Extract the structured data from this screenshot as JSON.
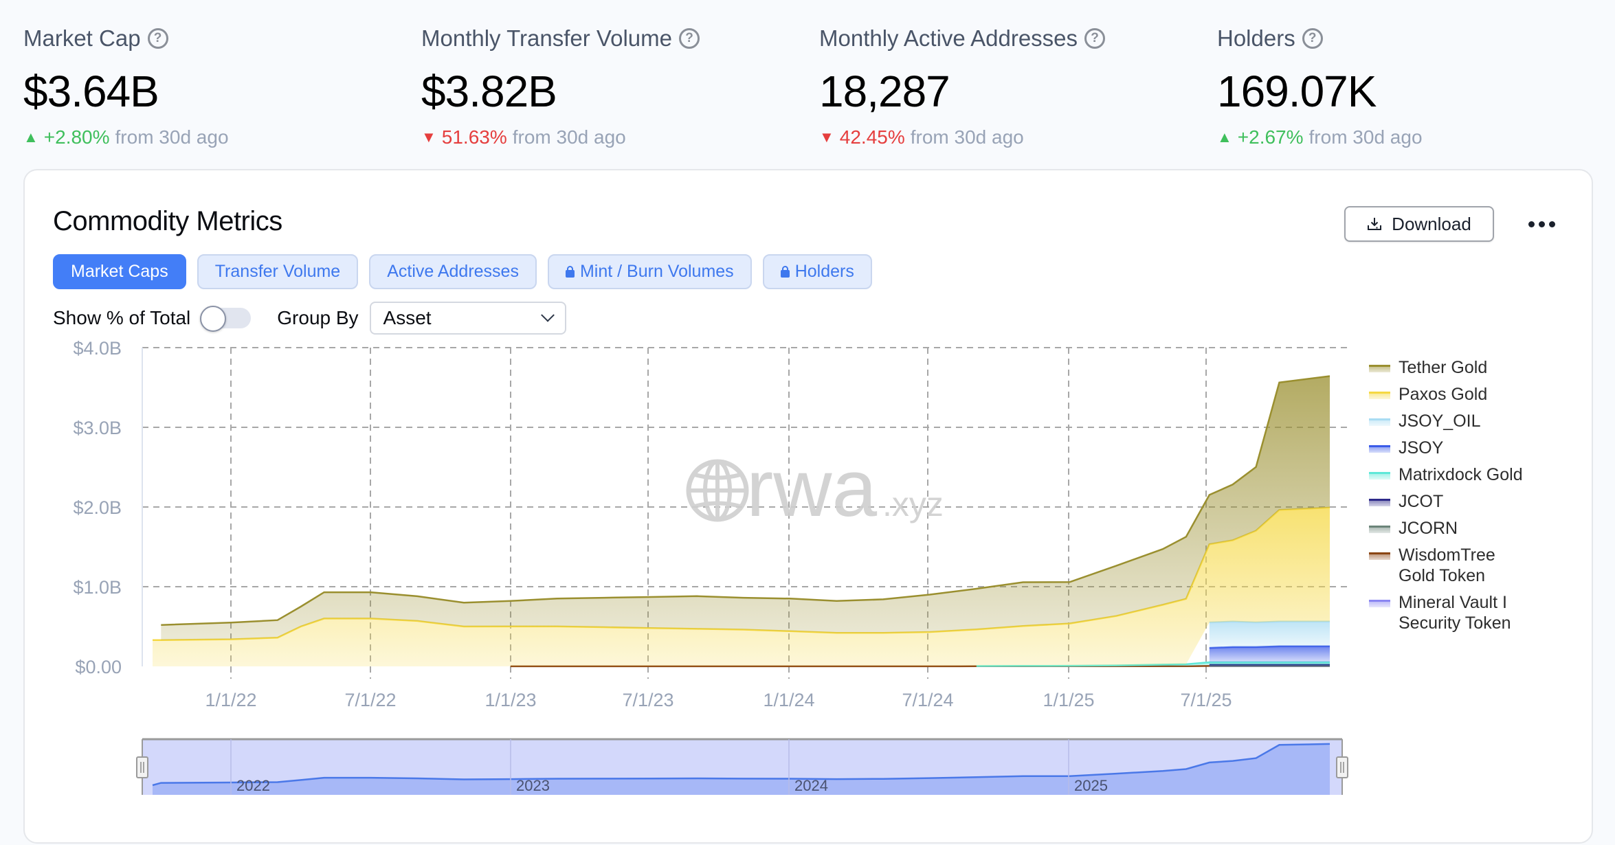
{
  "kpis": [
    {
      "label": "Market Cap",
      "value": "$3.64B",
      "direction": "up",
      "change": "+2.80%",
      "from": "from 30d ago"
    },
    {
      "label": "Monthly Transfer Volume",
      "value": "$3.82B",
      "direction": "down",
      "change": "51.63%",
      "from": "from 30d ago"
    },
    {
      "label": "Monthly Active Addresses",
      "value": "18,287",
      "direction": "down",
      "change": "42.45%",
      "from": "from 30d ago"
    },
    {
      "label": "Holders",
      "value": "169.07K",
      "direction": "up",
      "change": "+2.67%",
      "from": "from 30d ago"
    }
  ],
  "icons": {
    "help": "?",
    "up_arrow": "▲",
    "down_arrow": "▼"
  },
  "card": {
    "title": "Commodity Metrics",
    "download_label": "Download",
    "tabs": [
      {
        "label": "Market Caps",
        "active": true,
        "locked": false
      },
      {
        "label": "Transfer Volume",
        "active": false,
        "locked": false
      },
      {
        "label": "Active Addresses",
        "active": false,
        "locked": false
      },
      {
        "label": "Mint / Burn Volumes",
        "active": false,
        "locked": true
      },
      {
        "label": "Holders",
        "active": false,
        "locked": true
      }
    ],
    "show_pct_label": "Show % of Total",
    "show_pct_on": false,
    "group_by_label": "Group By",
    "group_by_value": "Asset"
  },
  "watermark": {
    "main": "rwa",
    "suffix": ".xyz"
  },
  "colors": {
    "accent": "#437ef7",
    "up": "#3fbf5c",
    "down": "#e53e3e",
    "tether_gold": "#9a8f2f",
    "paxos_gold": "#f5d842",
    "jsoy_oil": "#a9dcf3",
    "jsoy": "#3b5be8",
    "matrixdock_gold": "#5fe8d8",
    "jcot": "#2e2a8a",
    "jcorn": "#6b8479",
    "wisdomtree": "#8b4513",
    "mineral_vault": "#8a86f2"
  },
  "chart_data": {
    "type": "area",
    "stacked": true,
    "title": "",
    "xlabel": "",
    "ylabel": "",
    "ylim": [
      0,
      4.0
    ],
    "y_unit": "B USD",
    "y_ticks": [
      "$0.00",
      "$1.0B",
      "$2.0B",
      "$3.0B",
      "$4.0B"
    ],
    "x_ticks": [
      "1/1/22",
      "7/1/22",
      "1/1/23",
      "7/1/23",
      "1/1/24",
      "7/1/24",
      "1/1/25",
      "7/1/25"
    ],
    "grid": true,
    "legend_position": "right",
    "x": [
      "2021-08",
      "2021-10",
      "2022-01",
      "2022-03",
      "2022-04",
      "2022-05",
      "2022-07",
      "2022-09",
      "2022-11",
      "2023-01",
      "2023-03",
      "2023-05",
      "2023-07",
      "2023-09",
      "2023-11",
      "2024-01",
      "2024-03",
      "2024-05",
      "2024-07",
      "2024-09",
      "2024-11",
      "2025-01",
      "2025-03",
      "2025-05",
      "2025-06",
      "2025-07",
      "2025-08",
      "2025-09",
      "2025-10",
      "2025-11"
    ],
    "series": [
      {
        "name": "Mineral Vault I Security Token",
        "values": [
          0,
          0,
          0,
          0,
          0,
          0,
          0,
          0,
          0,
          0,
          0,
          0,
          0,
          0,
          0,
          0,
          0,
          0,
          0,
          0,
          0,
          0,
          0,
          0,
          0,
          0.003,
          0.003,
          0.003,
          0.003,
          0.003
        ]
      },
      {
        "name": "WisdomTree Gold Token",
        "values": [
          0,
          0,
          0,
          0,
          0,
          0,
          0,
          0,
          0,
          0.001,
          0.001,
          0.001,
          0.001,
          0.001,
          0.001,
          0.001,
          0.001,
          0.001,
          0.001,
          0.002,
          0.002,
          0.002,
          0.002,
          0.002,
          0.002,
          0.002,
          0.002,
          0.002,
          0.002,
          0.002
        ]
      },
      {
        "name": "JCORN",
        "values": [
          0,
          0,
          0,
          0,
          0,
          0,
          0,
          0,
          0,
          0,
          0,
          0,
          0,
          0,
          0,
          0,
          0,
          0,
          0,
          0,
          0,
          0,
          0,
          0,
          0,
          0.002,
          0.002,
          0.002,
          0.002,
          0.002
        ]
      },
      {
        "name": "JCOT",
        "values": [
          0,
          0,
          0,
          0,
          0,
          0,
          0,
          0,
          0,
          0,
          0,
          0,
          0,
          0,
          0,
          0,
          0,
          0,
          0,
          0,
          0,
          0,
          0,
          0,
          0,
          0.015,
          0.015,
          0.015,
          0.015,
          0.015
        ]
      },
      {
        "name": "Matrixdock Gold",
        "values": [
          0,
          0,
          0,
          0,
          0,
          0,
          0,
          0,
          0,
          0,
          0,
          0,
          0,
          0,
          0,
          0,
          0,
          0,
          0,
          0.002,
          0.004,
          0.006,
          0.01,
          0.02,
          0.025,
          0.03,
          0.03,
          0.03,
          0.03,
          0.03
        ]
      },
      {
        "name": "JSOY",
        "values": [
          0,
          0,
          0,
          0,
          0,
          0,
          0,
          0,
          0,
          0,
          0,
          0,
          0,
          0,
          0,
          0,
          0,
          0,
          0,
          0,
          0,
          0,
          0,
          0,
          0,
          0.18,
          0.19,
          0.19,
          0.2,
          0.2
        ]
      },
      {
        "name": "JSOY_OIL",
        "values": [
          0,
          0,
          0,
          0,
          0,
          0,
          0,
          0,
          0,
          0,
          0,
          0,
          0,
          0,
          0,
          0,
          0,
          0,
          0,
          0,
          0,
          0,
          0,
          0,
          0,
          0.32,
          0.32,
          0.31,
          0.31,
          0.31
        ]
      },
      {
        "name": "Paxos Gold",
        "values": [
          0.33,
          0.33,
          0.34,
          0.36,
          0.5,
          0.6,
          0.6,
          0.57,
          0.5,
          0.5,
          0.5,
          0.49,
          0.48,
          0.47,
          0.46,
          0.44,
          0.42,
          0.42,
          0.43,
          0.46,
          0.5,
          0.53,
          0.62,
          0.75,
          0.82,
          0.98,
          1.02,
          1.15,
          1.4,
          1.43
        ]
      },
      {
        "name": "Tether Gold",
        "values": [
          0,
          0.19,
          0.21,
          0.22,
          0.25,
          0.33,
          0.33,
          0.31,
          0.3,
          0.32,
          0.35,
          0.37,
          0.39,
          0.41,
          0.4,
          0.41,
          0.4,
          0.42,
          0.47,
          0.51,
          0.55,
          0.52,
          0.63,
          0.7,
          0.78,
          0.62,
          0.7,
          0.8,
          1.6,
          1.65
        ]
      }
    ],
    "navigator": {
      "labels": [
        "2022",
        "2023",
        "2024",
        "2025"
      ]
    }
  }
}
